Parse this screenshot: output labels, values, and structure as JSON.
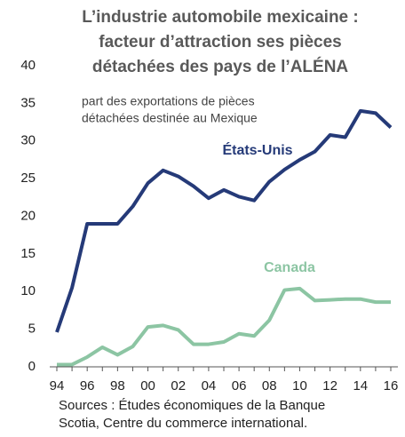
{
  "chart_data": {
    "type": "line",
    "title": [
      "L’industrie automobile mexicaine :",
      "facteur d’attraction ses pièces",
      "détachées des pays de l’ALÉNA"
    ],
    "subtitle": [
      "part des exportations de pièces",
      "détachées destinée au Mexique"
    ],
    "source": [
      "Sources : Études économiques de la Banque",
      "Scotia, Centre du commerce international."
    ],
    "categories": [
      "94",
      null,
      "96",
      null,
      "98",
      null,
      "00",
      null,
      "02",
      null,
      "04",
      null,
      "06",
      null,
      "08",
      null,
      "10",
      null,
      "12",
      null,
      "14",
      null,
      "16"
    ],
    "series": [
      {
        "name": "États-Unis",
        "color": "#253a78",
        "values": [
          4.6,
          10.5,
          19,
          19,
          19,
          21.3,
          24.4,
          26.1,
          25.3,
          24,
          22.4,
          23.5,
          22.6,
          22.1,
          24.6,
          26.2,
          27.5,
          28.6,
          30.8,
          30.5,
          34,
          33.7,
          31.8
        ]
      },
      {
        "name": "Canada",
        "color": "#8cc5a3",
        "values": [
          0.3,
          0.3,
          1.3,
          2.6,
          1.6,
          2.7,
          5.3,
          5.5,
          4.9,
          3.0,
          3.0,
          3.3,
          4.4,
          4.1,
          6.2,
          10.2,
          10.4,
          8.8,
          8.9,
          9.0,
          9.0,
          8.6,
          8.6
        ]
      }
    ],
    "ylim": [
      0,
      40
    ],
    "yticks": [
      0,
      5,
      10,
      15,
      20,
      25,
      30,
      35,
      40
    ],
    "grid": false
  }
}
